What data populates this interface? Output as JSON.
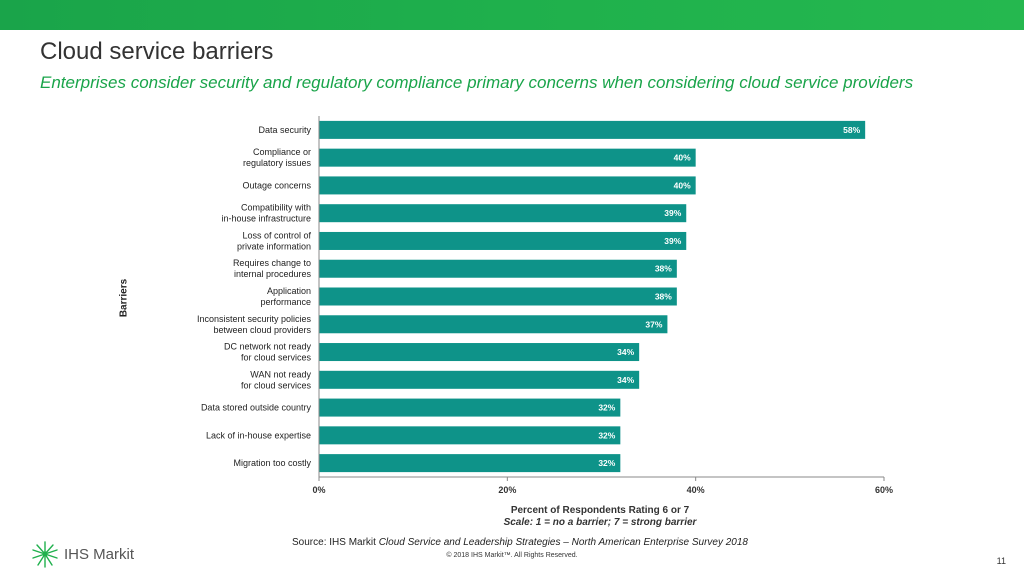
{
  "slide": {
    "title": "Cloud service barriers",
    "subtitle": "Enterprises consider security and regulatory compliance primary concerns when considering cloud service providers",
    "source_prefix": "Source: IHS Markit ",
    "source_title": "Cloud Service and Leadership Strategies – North American Enterprise Survey 2018",
    "copyright": "© 2018 IHS Markit™. All Rights Reserved.",
    "logo_text": "IHS Markit",
    "page_number": "11"
  },
  "colors": {
    "bar": "#0e9389",
    "topbar": "#1fb04c",
    "subtitle": "#1aa44a"
  },
  "chart_data": {
    "type": "bar",
    "orientation": "horizontal",
    "categories": [
      [
        "Data security"
      ],
      [
        "Compliance or",
        "regulatory issues"
      ],
      [
        "Outage concerns"
      ],
      [
        "Compatibility with",
        "in-house infrastructure"
      ],
      [
        "Loss of control of",
        "private information"
      ],
      [
        "Requires change to",
        "internal procedures"
      ],
      [
        "Application",
        "performance"
      ],
      [
        "Inconsistent security policies",
        "between cloud providers"
      ],
      [
        "DC network not ready",
        "for cloud services"
      ],
      [
        "WAN not ready",
        "for cloud services"
      ],
      [
        "Data stored outside country"
      ],
      [
        "Lack of in-house expertise"
      ],
      [
        "Migration too costly"
      ]
    ],
    "values": [
      58,
      40,
      40,
      39,
      39,
      38,
      38,
      37,
      34,
      34,
      32,
      32,
      32
    ],
    "value_labels": [
      "58%",
      "40%",
      "40%",
      "39%",
      "39%",
      "38%",
      "38%",
      "37%",
      "34%",
      "34%",
      "32%",
      "32%",
      "32%"
    ],
    "xlim": [
      0,
      60
    ],
    "xticks": [
      0,
      20,
      40,
      60
    ],
    "xtick_labels": [
      "0%",
      "20%",
      "40%",
      "60%"
    ],
    "xlabel": "Percent of Respondents Rating 6 or 7",
    "xlabel_sub": "Scale: 1 = no a barrier; 7 = strong barrier",
    "ylabel": "Barriers",
    "grid": false,
    "legend": "none"
  }
}
